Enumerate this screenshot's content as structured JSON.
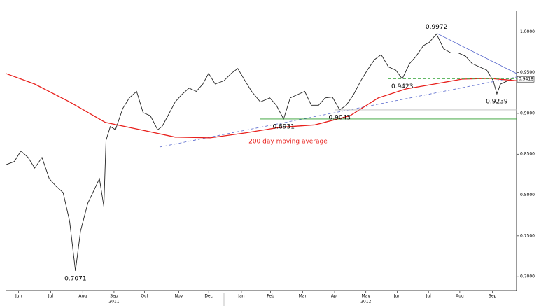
{
  "chart_data": {
    "type": "line",
    "xlim": [
      0,
      70.2
    ],
    "ylim": [
      0.683,
      1.026
    ],
    "xticks": [
      {
        "value": 1.8,
        "label": "Jun"
      },
      {
        "value": 6.2,
        "label": "Jul"
      },
      {
        "value": 10.6,
        "label": "Aug"
      },
      {
        "value": 14.9,
        "label": "Sep"
      },
      {
        "value": 19.1,
        "label": "Oct"
      },
      {
        "value": 23.8,
        "label": "Nov"
      },
      {
        "value": 27.9,
        "label": "Dec"
      },
      {
        "value": 32.4,
        "label": "Jan"
      },
      {
        "value": 36.4,
        "label": "Feb"
      },
      {
        "value": 40.8,
        "label": "Mar"
      },
      {
        "value": 45.2,
        "label": "Apr"
      },
      {
        "value": 49.5,
        "label": "May"
      },
      {
        "value": 53.8,
        "label": "Jun"
      },
      {
        "value": 58.1,
        "label": "Jul"
      },
      {
        "value": 62.4,
        "label": "Aug"
      },
      {
        "value": 66.9,
        "label": "Sep"
      }
    ],
    "year_labels": [
      {
        "value": 14.9,
        "label": "2011"
      },
      {
        "value": 49.5,
        "label": "2012"
      }
    ],
    "yticks": [
      {
        "value": 0.7,
        "label": "0.7000"
      },
      {
        "value": 0.75,
        "label": "0.7500"
      },
      {
        "value": 0.8,
        "label": "0.8000"
      },
      {
        "value": 0.85,
        "label": "0.8500"
      },
      {
        "value": 0.9,
        "label": "0.9000"
      },
      {
        "value": 0.95,
        "label": "0.9500"
      },
      {
        "value": 1.0,
        "label": "1.0000"
      }
    ],
    "series": [
      {
        "color": "#222222",
        "x": [
          0,
          1.2,
          2.1,
          3.1,
          4.0,
          5.0,
          6.0,
          6.9,
          7.9,
          8.8,
          9.6,
          10.3,
          11.3,
          12.2,
          12.9,
          13.5,
          13.8,
          14.4,
          15.1,
          16.1,
          17.0,
          18.0,
          18.9,
          19.9,
          20.9,
          21.5,
          22.3,
          23.3,
          24.2,
          25.2,
          26.2,
          27.1,
          27.9,
          28.8,
          30.0,
          31.0,
          31.9,
          32.9,
          33.8,
          35.0,
          36.3,
          37.2,
          38.2,
          39.1,
          40.1,
          41.1,
          42.0,
          43.0,
          43.9,
          44.9,
          45.9,
          46.8,
          47.8,
          48.8,
          49.7,
          50.7,
          51.6,
          52.6,
          53.6,
          54.5,
          55.5,
          56.4,
          57.4,
          58.2,
          59.2,
          60.2,
          61.2,
          62.2,
          63.2,
          64.1,
          65.1,
          66.1,
          67.0,
          67.5,
          68.0,
          69.0,
          69.9
        ],
        "values": [
          0.837,
          0.841,
          0.854,
          0.846,
          0.833,
          0.846,
          0.82,
          0.811,
          0.803,
          0.768,
          0.7071,
          0.756,
          0.79,
          0.807,
          0.82,
          0.786,
          0.867,
          0.884,
          0.88,
          0.906,
          0.919,
          0.927,
          0.901,
          0.897,
          0.88,
          0.884,
          0.897,
          0.914,
          0.923,
          0.931,
          0.927,
          0.936,
          0.949,
          0.936,
          0.94,
          0.949,
          0.955,
          0.94,
          0.927,
          0.914,
          0.919,
          0.91,
          0.8931,
          0.919,
          0.923,
          0.927,
          0.91,
          0.91,
          0.919,
          0.92,
          0.9043,
          0.91,
          0.923,
          0.94,
          0.953,
          0.966,
          0.972,
          0.957,
          0.953,
          0.9423,
          0.961,
          0.97,
          0.983,
          0.987,
          0.9972,
          0.979,
          0.974,
          0.974,
          0.97,
          0.961,
          0.957,
          0.953,
          0.94,
          0.9239,
          0.936,
          0.94,
          0.944
        ]
      },
      {
        "name": "200 day moving average",
        "color": "#e8201c",
        "x": [
          0,
          4.0,
          8.8,
          13.7,
          18.5,
          23.3,
          28.1,
          32.9,
          37.7,
          42.5,
          47.3,
          51.2,
          55.0,
          58.9,
          62.7,
          66.5,
          70.2
        ],
        "values": [
          0.949,
          0.936,
          0.914,
          0.889,
          0.88,
          0.871,
          0.87,
          0.876,
          0.883,
          0.886,
          0.897,
          0.919,
          0.93,
          0.936,
          0.942,
          0.943,
          0.94
        ]
      }
    ],
    "annotations": [
      {
        "label": "0.7071",
        "value": 0.7071,
        "x": 9.6
      },
      {
        "label": "0.9972",
        "value": 0.9972,
        "x": 59.2
      },
      {
        "label": "0.9423",
        "value": 0.9423,
        "x": 54.5,
        "line": "#4caf50",
        "from": 52.6
      },
      {
        "label": "0.9239",
        "value": 0.9239,
        "x": 67.5
      },
      {
        "label": "0.8931",
        "value": 0.8931,
        "x": 38.2,
        "line": "#2e9e2e",
        "from": 35.0
      },
      {
        "label": "0.9043",
        "value": 0.9043,
        "x": 45.9,
        "line": "#bbbbbb",
        "from": 45.2
      }
    ],
    "last_price": {
      "value": 0.9418,
      "label": "0.9418"
    }
  }
}
